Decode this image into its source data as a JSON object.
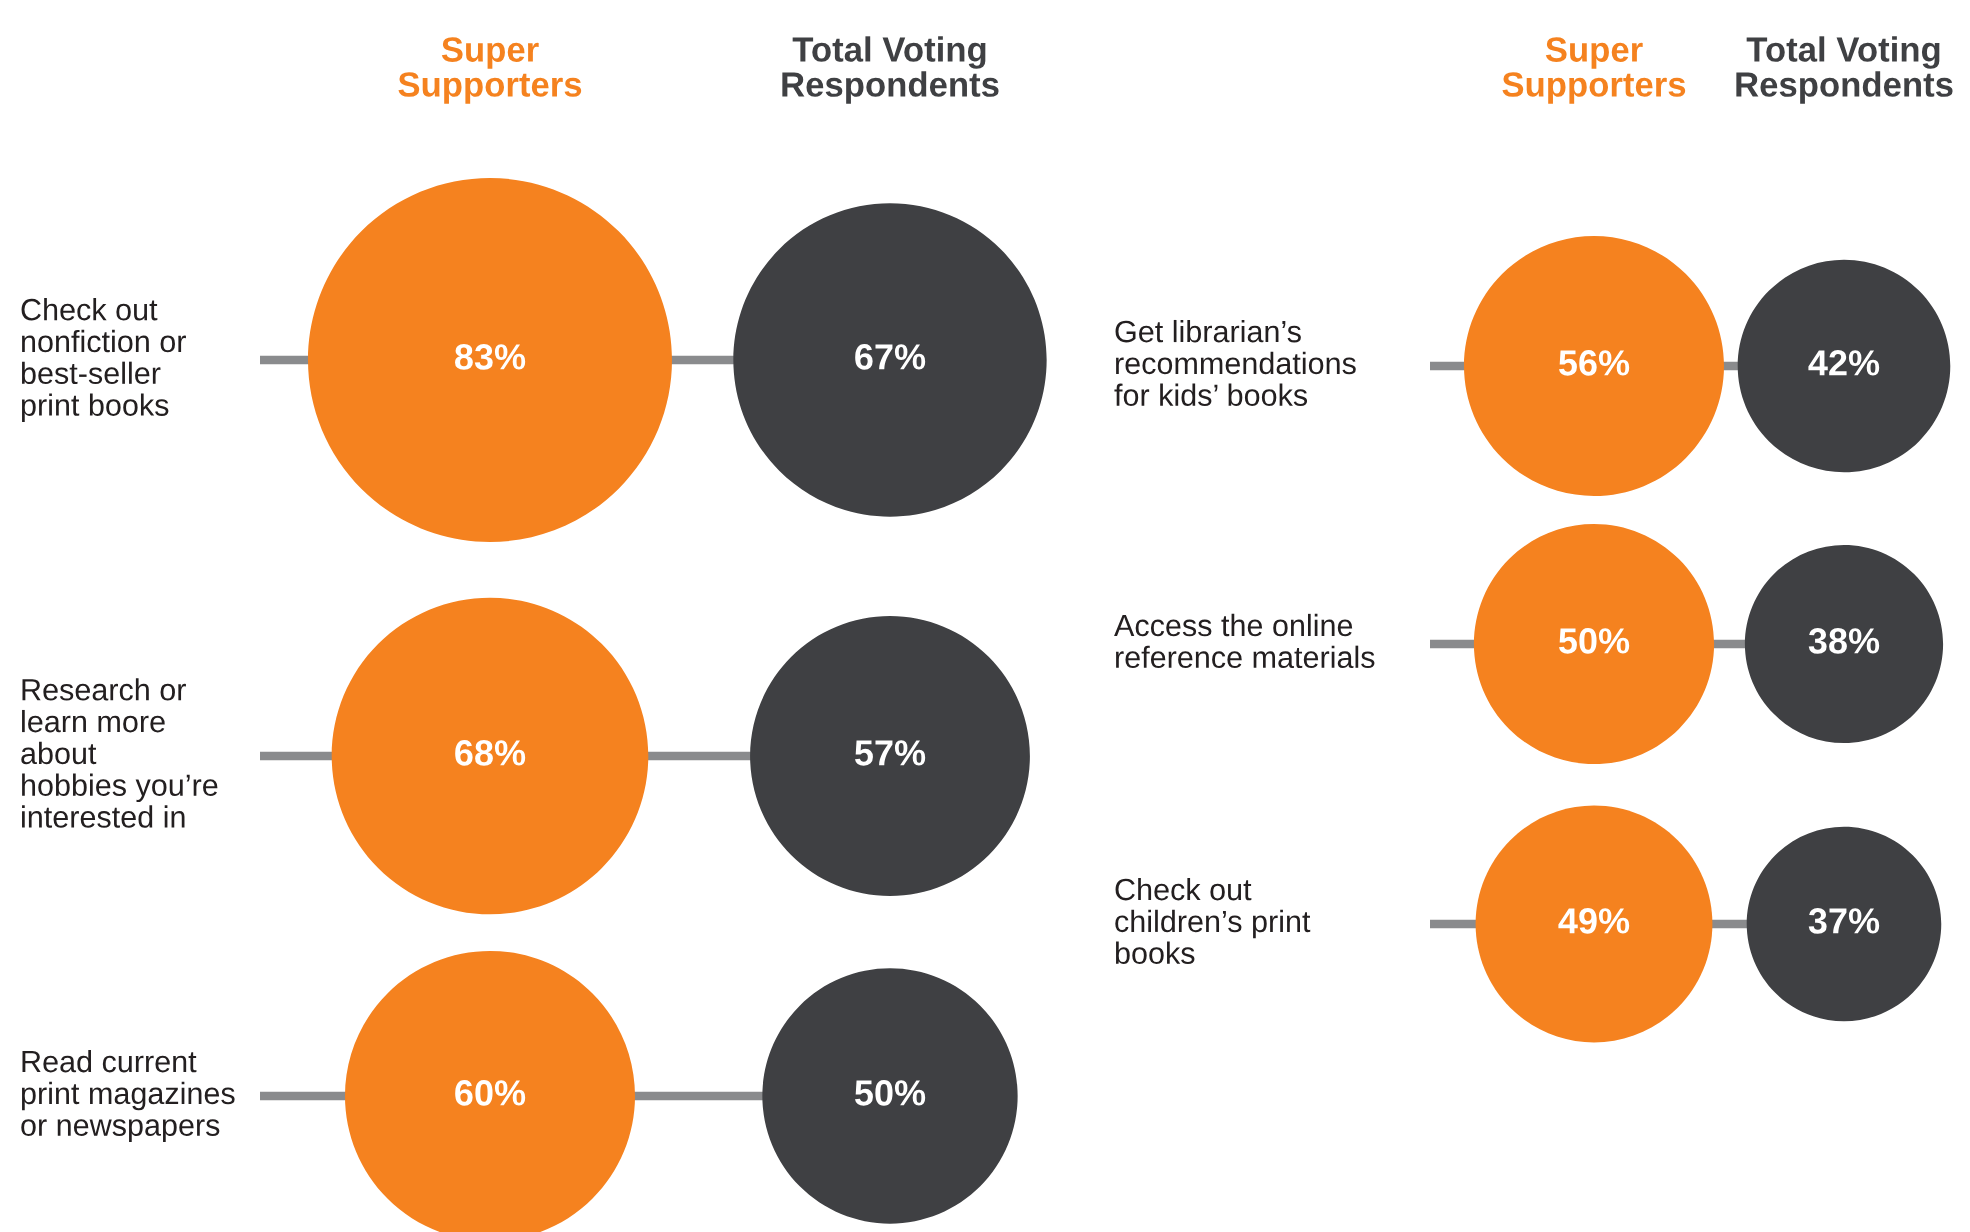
{
  "chart_data": [
    {
      "type": "other",
      "categories": [
        "Check out\nnonfiction or\nbest-seller\nprint books",
        "Research or\nlearn more\nabout\nhobbies you’re\ninterested in",
        "Read current\nprint magazines\nor newspapers"
      ],
      "series": [
        {
          "name": "Super\nSupporters",
          "color": "#f5821f",
          "values": [
            83,
            68,
            60
          ],
          "value_labels": [
            "83%",
            "68%",
            "60%"
          ]
        },
        {
          "name": "Total Voting\nRespondents",
          "color": "#3f4043",
          "values": [
            67,
            57,
            50
          ],
          "value_labels": [
            "67%",
            "57%",
            "50%"
          ]
        }
      ]
    },
    {
      "type": "other",
      "categories": [
        "Get librarian’s\nrecommendations\nfor kids’ books",
        "Access the online\nreference materials",
        "Check out\nchildren’s print\nbooks"
      ],
      "series": [
        {
          "name": "Super\nSupporters",
          "color": "#f5821f",
          "values": [
            56,
            50,
            49
          ],
          "value_labels": [
            "56%",
            "50%",
            "49%"
          ]
        },
        {
          "name": "Total Voting\nRespondents",
          "color": "#3f4043",
          "values": [
            42,
            38,
            37
          ],
          "value_labels": [
            "42%",
            "38%",
            "37%"
          ]
        }
      ]
    }
  ]
}
